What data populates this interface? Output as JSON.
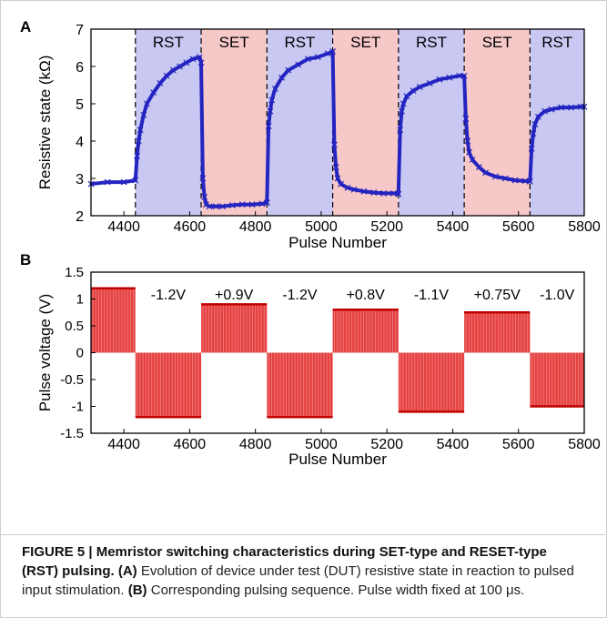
{
  "figure": {
    "panel_a_label": "A",
    "panel_b_label": "B",
    "caption": {
      "title": "FIGURE 5 | Memristor switching characteristics during SET-type and RESET-type (RST) pulsing.",
      "part_a_tag": "(A)",
      "part_a_text": " Evolution of device under test (DUT) resistive state in reaction to pulsed input stimulation. ",
      "part_b_tag": "(B)",
      "part_b_text": " Corresponding pulsing sequence. Pulse width fixed at 100 μs."
    }
  },
  "colors": {
    "rst_band": "#c8c8f2",
    "set_band": "#f6c8c8",
    "trace": "#2424c0",
    "pulse": "#e02020",
    "boundary": "#000000"
  },
  "chart_data": [
    {
      "type": "scatter",
      "panel": "A",
      "xlabel": "Pulse Number",
      "ylabel": "Resistive state (kΩ)",
      "xlim": [
        4300,
        5800
      ],
      "ylim": [
        2,
        7
      ],
      "xticks": [
        4400,
        4600,
        4800,
        5000,
        5200,
        5400,
        5600,
        5800
      ],
      "yticks": [
        2,
        3,
        4,
        5,
        6,
        7
      ],
      "grid": false,
      "regions": [
        {
          "label": "RST",
          "type": "RST",
          "x0": 4435,
          "x1": 4635
        },
        {
          "label": "SET",
          "type": "SET",
          "x0": 4635,
          "x1": 4835
        },
        {
          "label": "RST",
          "type": "RST",
          "x0": 4835,
          "x1": 5035
        },
        {
          "label": "SET",
          "type": "SET",
          "x0": 5035,
          "x1": 5235
        },
        {
          "label": "RST",
          "type": "RST",
          "x0": 5235,
          "x1": 5435
        },
        {
          "label": "SET",
          "type": "SET",
          "x0": 5435,
          "x1": 5635
        },
        {
          "label": "RST",
          "type": "RST",
          "x0": 5635,
          "x1": 5800
        }
      ],
      "series": [
        {
          "x": [
            4300,
            4350,
            4400,
            4435,
            4440,
            4445,
            4450,
            4460,
            4470,
            4490,
            4510,
            4530,
            4550,
            4570,
            4590,
            4610,
            4630,
            4635,
            4640,
            4645,
            4650,
            4660,
            4680,
            4700,
            4730,
            4760,
            4790,
            4820,
            4835,
            4840,
            4845,
            4850,
            4860,
            4880,
            4900,
            4930,
            4960,
            4990,
            5020,
            5035,
            5040,
            5045,
            5050,
            5060,
            5080,
            5100,
            5130,
            5160,
            5190,
            5220,
            5235,
            5240,
            5245,
            5250,
            5260,
            5280,
            5300,
            5330,
            5360,
            5390,
            5420,
            5435,
            5440,
            5445,
            5450,
            5460,
            5480,
            5500,
            5530,
            5560,
            5590,
            5620,
            5635,
            5640,
            5645,
            5650,
            5660,
            5680,
            5700,
            5730,
            5760,
            5790,
            5800
          ],
          "y": [
            2.85,
            2.9,
            2.9,
            2.95,
            3.6,
            4.0,
            4.3,
            4.7,
            5.0,
            5.3,
            5.55,
            5.75,
            5.9,
            6.0,
            6.1,
            6.2,
            6.25,
            6.1,
            3.0,
            2.5,
            2.3,
            2.25,
            2.25,
            2.25,
            2.28,
            2.3,
            2.3,
            2.32,
            2.35,
            4.4,
            4.8,
            5.1,
            5.4,
            5.7,
            5.9,
            6.05,
            6.2,
            6.25,
            6.35,
            6.4,
            3.9,
            3.3,
            3.0,
            2.85,
            2.75,
            2.7,
            2.65,
            2.62,
            2.6,
            2.6,
            2.58,
            4.3,
            4.8,
            5.0,
            5.2,
            5.35,
            5.45,
            5.55,
            5.65,
            5.7,
            5.75,
            5.75,
            4.6,
            4.0,
            3.7,
            3.5,
            3.3,
            3.15,
            3.05,
            3.0,
            2.95,
            2.93,
            2.92,
            3.8,
            4.2,
            4.45,
            4.65,
            4.8,
            4.85,
            4.9,
            4.9,
            4.92,
            4.92
          ]
        }
      ]
    },
    {
      "type": "bar",
      "panel": "B",
      "xlabel": "Pulse Number",
      "ylabel": "Pulse voltage (V)",
      "xlim": [
        4300,
        5800
      ],
      "ylim": [
        -1.5,
        1.5
      ],
      "xticks": [
        4400,
        4600,
        4800,
        5000,
        5200,
        5400,
        5600,
        5800
      ],
      "yticks": [
        -1.5,
        -1,
        -0.5,
        0,
        0.5,
        1,
        1.5
      ],
      "grid": false,
      "blocks": [
        {
          "x0": 4300,
          "x1": 4435,
          "voltage": 1.2,
          "label": ""
        },
        {
          "x0": 4435,
          "x1": 4635,
          "voltage": -1.2,
          "label": "-1.2V"
        },
        {
          "x0": 4635,
          "x1": 4835,
          "voltage": 0.9,
          "label": "+0.9V"
        },
        {
          "x0": 4835,
          "x1": 5035,
          "voltage": -1.2,
          "label": "-1.2V"
        },
        {
          "x0": 5035,
          "x1": 5235,
          "voltage": 0.8,
          "label": "+0.8V"
        },
        {
          "x0": 5235,
          "x1": 5435,
          "voltage": -1.1,
          "label": "-1.1V"
        },
        {
          "x0": 5435,
          "x1": 5635,
          "voltage": 0.75,
          "label": "+0.75V"
        },
        {
          "x0": 5635,
          "x1": 5800,
          "voltage": -1.0,
          "label": "-1.0V"
        }
      ]
    }
  ]
}
